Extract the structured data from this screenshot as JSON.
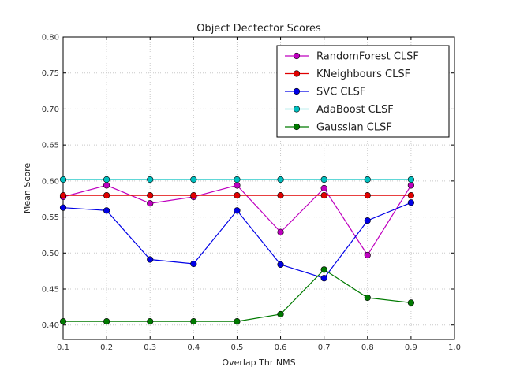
{
  "chart_data": {
    "type": "line",
    "title": "Object Dectector Scores",
    "xlabel": "Overlap Thr NMS",
    "ylabel": "Mean Score",
    "xlim": [
      0.1,
      1.0
    ],
    "ylim": [
      0.38,
      0.8
    ],
    "xticks": [
      "0.1",
      "0.2",
      "0.3",
      "0.4",
      "0.5",
      "0.6",
      "0.7",
      "0.8",
      "0.9",
      "1.0"
    ],
    "yticks": [
      "0.40",
      "0.45",
      "0.50",
      "0.55",
      "0.60",
      "0.65",
      "0.70",
      "0.75",
      "0.80"
    ],
    "grid": true,
    "legend_position": "top-right",
    "x": [
      0.1,
      0.2,
      0.3,
      0.4,
      0.5,
      0.6,
      0.7,
      0.8,
      0.9
    ],
    "series": [
      {
        "name": "RandomForest CLSF",
        "color": "#bf00bf",
        "values": [
          0.578,
          0.594,
          0.569,
          0.578,
          0.594,
          0.529,
          0.59,
          0.497,
          0.594
        ]
      },
      {
        "name": "KNeighbours CLSF",
        "color": "#e00000",
        "values": [
          0.58,
          0.58,
          0.58,
          0.58,
          0.58,
          0.58,
          0.58,
          0.58,
          0.58
        ]
      },
      {
        "name": "SVC CLSF",
        "color": "#0000e6",
        "values": [
          0.563,
          0.559,
          0.491,
          0.485,
          0.559,
          0.484,
          0.465,
          0.545,
          0.57
        ]
      },
      {
        "name": "AdaBoost CLSF",
        "color": "#00bfbf",
        "values": [
          0.602,
          0.602,
          0.602,
          0.602,
          0.602,
          0.602,
          0.602,
          0.602,
          0.602
        ]
      },
      {
        "name": "Gaussian CLSF",
        "color": "#007a00",
        "values": [
          0.405,
          0.405,
          0.405,
          0.405,
          0.405,
          0.415,
          0.477,
          0.438,
          0.431
        ]
      }
    ]
  }
}
